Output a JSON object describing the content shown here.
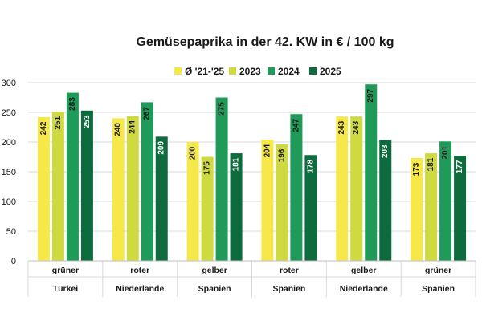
{
  "chart_data": {
    "type": "bar",
    "title": "Gemüsepaprika in der 42. KW in € / 100 kg",
    "xlabel": "",
    "ylabel": "",
    "ylim": [
      0,
      300
    ],
    "yticks": [
      0,
      50,
      100,
      150,
      200,
      250,
      300
    ],
    "grid": true,
    "legend_position": "top-center",
    "categories": [
      {
        "type": "grüner",
        "origin": "Türkei"
      },
      {
        "type": "roter",
        "origin": "Niederlande"
      },
      {
        "type": "gelber",
        "origin": "Spanien"
      },
      {
        "type": "roter",
        "origin": "Spanien"
      },
      {
        "type": "gelber",
        "origin": "Niederlande"
      },
      {
        "type": "grüner",
        "origin": "Spanien"
      }
    ],
    "series": [
      {
        "name": "Ø '21-'25",
        "color": "#f7e84a",
        "label_color": "#1a1a1a",
        "values": [
          242,
          240,
          200,
          204,
          243,
          173
        ]
      },
      {
        "name": "2023",
        "color": "#cfd940",
        "label_color": "#1a1a1a",
        "values": [
          251,
          244,
          175,
          196,
          243,
          181
        ]
      },
      {
        "name": "2024",
        "color": "#1f9a58",
        "label_color": "#1a1a1a",
        "values": [
          283,
          267,
          275,
          247,
          297,
          201
        ]
      },
      {
        "name": "2025",
        "color": "#0d6b3e",
        "label_color": "#ffffff",
        "values": [
          253,
          209,
          181,
          178,
          203,
          177
        ]
      }
    ]
  }
}
